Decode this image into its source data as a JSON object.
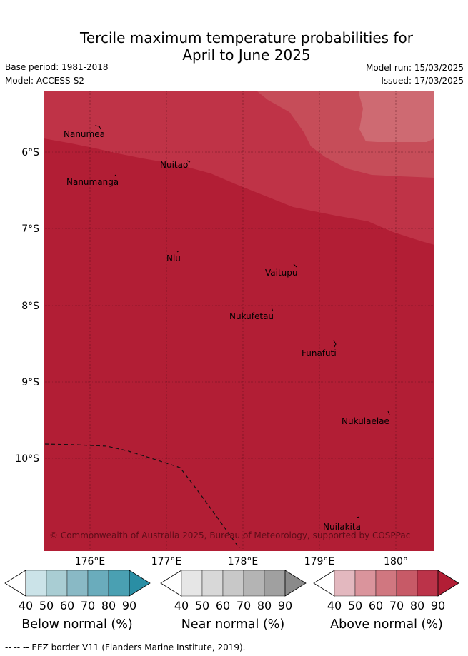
{
  "title_line1": "Tercile maximum temperature probabilities for",
  "title_line2": "April to June 2025",
  "meta": {
    "base_period": "Base period: 1981-2018",
    "model": "Model: ACCESS-S2",
    "model_run": "Model run: 15/03/2025",
    "issued": "Issued: 17/03/2025"
  },
  "map": {
    "lon_ticks": [
      "176°E",
      "177°E",
      "178°E",
      "179°E",
      "180°"
    ],
    "lat_ticks": [
      "6°S",
      "7°S",
      "8°S",
      "9°S",
      "10°S"
    ],
    "copyright": "© Commonwealth of Australia 2025, Bureau of Meteorology, supported by COSPPac",
    "places": [
      {
        "name": "Nanumea"
      },
      {
        "name": "Nuitao"
      },
      {
        "name": "Nanumanga"
      },
      {
        "name": "Niu"
      },
      {
        "name": "Vaitupu"
      },
      {
        "name": "Nukufetau"
      },
      {
        "name": "Funafuti"
      },
      {
        "name": "Nukulaelae"
      },
      {
        "name": "Nuilakita"
      }
    ],
    "colors": {
      "above_90": "#b21e35",
      "above_80": "#bf3347",
      "above_70": "#c64d59",
      "above_60": "#ce6a72",
      "grid": "#4a0f18"
    }
  },
  "colorbars": [
    {
      "title": "Below normal (%)",
      "ticks": [
        "40",
        "50",
        "60",
        "70",
        "80",
        "90"
      ],
      "colors": [
        "#ffffff",
        "#cbe3e8",
        "#a9cdd3",
        "#89b9c5",
        "#6aacbc",
        "#4aa0b2",
        "#2a8ea4"
      ]
    },
    {
      "title": "Near normal (%)",
      "ticks": [
        "40",
        "50",
        "60",
        "70",
        "80",
        "90"
      ],
      "colors": [
        "#ffffff",
        "#e6e6e6",
        "#d8d8d8",
        "#c8c8c8",
        "#b4b4b4",
        "#a0a0a0",
        "#8a8a8a"
      ]
    },
    {
      "title": "Above normal (%)",
      "ticks": [
        "40",
        "50",
        "60",
        "70",
        "80",
        "90"
      ],
      "colors": [
        "#ffffff",
        "#e3b8bf",
        "#da949c",
        "#d07780",
        "#c75a67",
        "#bb3349",
        "#b21e35"
      ]
    }
  ],
  "footnote": "--  --  -- EEZ border V11 (Flanders Marine Institute, 2019)."
}
